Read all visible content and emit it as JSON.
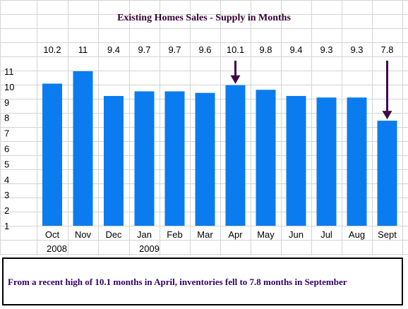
{
  "chart_data": {
    "type": "bar",
    "title": "Existing Homes Sales -  Supply in Months",
    "categories": [
      "Oct",
      "Nov",
      "Dec",
      "Jan",
      "Feb",
      "Mar",
      "Apr",
      "May",
      "Jun",
      "Jul",
      "Aug",
      "Sept"
    ],
    "values": [
      10.2,
      11,
      9.4,
      9.7,
      9.7,
      9.6,
      10.1,
      9.8,
      9.4,
      9.3,
      9.3,
      7.8
    ],
    "value_labels": [
      "10.2",
      "11",
      "9.4",
      "9.7",
      "9.7",
      "9.6",
      "10.1",
      "9.8",
      "9.4",
      "9.3",
      "9.3",
      "7.8"
    ],
    "years": [
      {
        "label": "2008",
        "category_index": 0
      },
      {
        "label": "2009",
        "category_index": 3
      }
    ],
    "y_ticks": [
      "1",
      "2",
      "3",
      "4",
      "5",
      "6",
      "7",
      "8",
      "9",
      "10",
      "11"
    ],
    "ylim": [
      1,
      11
    ],
    "grid": true,
    "bar_color": "#0a7cf0",
    "arrow_color": "#3d0a45",
    "arrows_at": [
      "Apr",
      "Sept"
    ]
  },
  "note": "From a recent high of 10.1 months in April, inventories fell to 7.8 months in September"
}
